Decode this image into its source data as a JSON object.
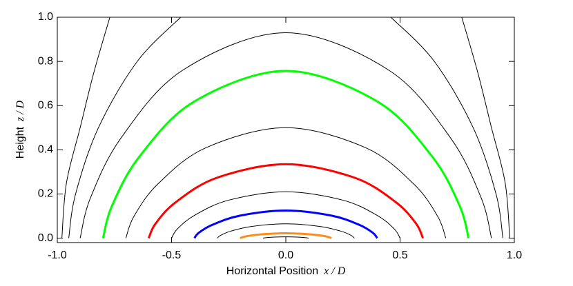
{
  "chart_data": {
    "type": "line",
    "xlabel": "Horizontal Position",
    "xlabel_var": "x / D",
    "ylabel": "Height",
    "ylabel_var": "z / D",
    "xlim": [
      -1.0,
      1.0
    ],
    "ylim": [
      -0.02,
      1.0
    ],
    "xticks": [
      {
        "value": -1.0,
        "label": "-1.0"
      },
      {
        "value": -0.5,
        "label": "-0.5"
      },
      {
        "value": 0,
        "label": "0.0"
      },
      {
        "value": 0.5,
        "label": "0.5"
      },
      {
        "value": 1.0,
        "label": "1.0"
      }
    ],
    "yticks": [
      {
        "value": 0,
        "label": "0.0"
      },
      {
        "value": 0.2,
        "label": "0.2"
      },
      {
        "value": 0.4,
        "label": "0.4"
      },
      {
        "value": 0.6,
        "label": "0.6"
      },
      {
        "value": 0.8,
        "label": "0.8"
      },
      {
        "value": 1.0,
        "label": "1.0"
      }
    ],
    "series": [
      {
        "color": "#000000",
        "x": [
          -0.1,
          -0.095,
          -0.08,
          -0.05,
          0,
          0.05,
          0.08,
          0.095,
          0.1
        ],
        "values": [
          0,
          0.001,
          0.003,
          0.005,
          0.006,
          0.005,
          0.003,
          0.001,
          0
        ]
      },
      {
        "color": "#ff8c1a",
        "x": [
          -0.2,
          -0.19,
          -0.16,
          -0.1,
          0,
          0.1,
          0.16,
          0.19,
          0.2
        ],
        "values": [
          0,
          0.004,
          0.011,
          0.018,
          0.022,
          0.018,
          0.011,
          0.004,
          0
        ]
      },
      {
        "color": "#000000",
        "x": [
          -0.3,
          -0.285,
          -0.24,
          -0.15,
          0,
          0.15,
          0.24,
          0.285,
          0.3
        ],
        "values": [
          0,
          0.013,
          0.032,
          0.053,
          0.065,
          0.053,
          0.032,
          0.013,
          0
        ]
      },
      {
        "color": "#0000ff",
        "x": [
          -0.4,
          -0.38,
          -0.32,
          -0.2,
          0,
          0.2,
          0.32,
          0.38,
          0.4
        ],
        "values": [
          0,
          0.025,
          0.061,
          0.102,
          0.125,
          0.102,
          0.061,
          0.025,
          0
        ]
      },
      {
        "color": "#000000",
        "x": [
          -0.5,
          -0.475,
          -0.4,
          -0.25,
          0,
          0.25,
          0.4,
          0.475,
          0.5
        ],
        "values": [
          0,
          0.041,
          0.103,
          0.172,
          0.21,
          0.172,
          0.103,
          0.041,
          0
        ]
      },
      {
        "color": "#ff0000",
        "x": [
          -0.6,
          -0.57,
          -0.48,
          -0.3,
          0,
          0.3,
          0.48,
          0.57,
          0.6
        ],
        "values": [
          0,
          0.066,
          0.164,
          0.274,
          0.335,
          0.274,
          0.164,
          0.066,
          0
        ]
      },
      {
        "color": "#000000",
        "x": [
          -0.7,
          -0.665,
          -0.56,
          -0.35,
          0,
          0.35,
          0.56,
          0.665,
          0.7
        ],
        "values": [
          0,
          0.098,
          0.245,
          0.409,
          0.5,
          0.409,
          0.245,
          0.098,
          0
        ]
      },
      {
        "color": "#00ff00",
        "x": [
          -0.8,
          -0.76,
          -0.64,
          -0.4,
          0,
          0.4,
          0.64,
          0.76,
          0.8
        ],
        "values": [
          0,
          0.148,
          0.37,
          0.619,
          0.757,
          0.619,
          0.37,
          0.148,
          0
        ]
      },
      {
        "color": "#000000",
        "x": [
          -0.9,
          -0.855,
          -0.72,
          -0.45,
          0,
          0.45,
          0.72,
          0.855,
          0.9
        ],
        "values": [
          0,
          0.182,
          0.455,
          0.761,
          0.93,
          0.761,
          0.455,
          0.182,
          0
        ]
      },
      {
        "color": "#000000",
        "x": [
          -0.95,
          -0.92,
          -0.82,
          -0.65,
          -0.46,
          null,
          0.46,
          0.65,
          0.82,
          0.92,
          0.95
        ],
        "values": [
          0,
          0.2,
          0.5,
          0.8,
          1.0,
          null,
          1.0,
          0.8,
          0.5,
          0.2,
          0
        ]
      },
      {
        "color": "#000000",
        "x": [
          -0.98,
          -0.96,
          -0.9,
          -0.84,
          -0.77,
          null,
          0.77,
          0.84,
          0.9,
          0.96,
          0.98
        ],
        "values": [
          0,
          0.25,
          0.5,
          0.75,
          1.0,
          null,
          1.0,
          0.75,
          0.5,
          0.25,
          0
        ]
      }
    ]
  }
}
